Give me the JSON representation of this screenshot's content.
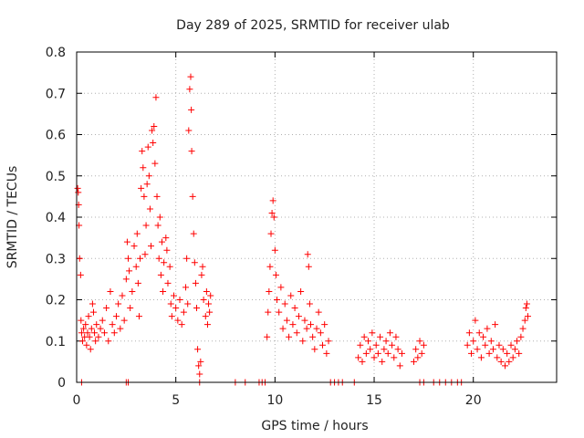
{
  "colors": {
    "points": "#ff0000",
    "axis": "#000000",
    "grid": "#b0b0b0"
  },
  "chart_data": {
    "type": "scatter",
    "title": "Day 289 of 2025, SRMTID for receiver ulab",
    "xlabel": "GPS time / hours",
    "ylabel": "SRMTID / TECUs",
    "xlim": [
      0,
      24.2
    ],
    "ylim": [
      0,
      0.8
    ],
    "xticks": [
      0,
      5,
      10,
      15,
      20
    ],
    "xtick_labels": [
      "0",
      "5",
      "10",
      "15",
      "20"
    ],
    "yticks": [
      0,
      0.1,
      0.2,
      0.3,
      0.4,
      0.5,
      0.6,
      0.7,
      0.8
    ],
    "ytick_labels": [
      "0",
      "0.1",
      "0.2",
      "0.3",
      "0.4",
      "0.5",
      "0.6",
      "0.7",
      "0.8"
    ],
    "grid": true,
    "marker": "+",
    "series": [
      {
        "name": "SRMTID",
        "points": [
          [
            0.05,
            0.47
          ],
          [
            0.08,
            0.46
          ],
          [
            0.1,
            0.43
          ],
          [
            0.12,
            0.38
          ],
          [
            0.15,
            0.3
          ],
          [
            0.2,
            0.26
          ],
          [
            0.22,
            0.15
          ],
          [
            0.25,
            0.12
          ],
          [
            0.3,
            0.1
          ],
          [
            0.35,
            0.13
          ],
          [
            0.4,
            0.11
          ],
          [
            0.45,
            0.14
          ],
          [
            0.5,
            0.09
          ],
          [
            0.55,
            0.12
          ],
          [
            0.6,
            0.16
          ],
          [
            0.65,
            0.11
          ],
          [
            0.7,
            0.08
          ],
          [
            0.75,
            0.13
          ],
          [
            0.8,
            0.19
          ],
          [
            0.85,
            0.17
          ],
          [
            0.9,
            0.12
          ],
          [
            0.95,
            0.1
          ],
          [
            1.0,
            0.14
          ],
          [
            1.1,
            0.11
          ],
          [
            1.2,
            0.13
          ],
          [
            1.3,
            0.15
          ],
          [
            1.4,
            0.12
          ],
          [
            1.5,
            0.18
          ],
          [
            1.6,
            0.1
          ],
          [
            1.7,
            0.22
          ],
          [
            1.8,
            0.14
          ],
          [
            1.9,
            0.12
          ],
          [
            2.0,
            0.16
          ],
          [
            2.1,
            0.19
          ],
          [
            2.2,
            0.13
          ],
          [
            2.3,
            0.21
          ],
          [
            2.4,
            0.15
          ],
          [
            2.5,
            0.25
          ],
          [
            2.55,
            0.34
          ],
          [
            2.6,
            0.3
          ],
          [
            2.65,
            0.27
          ],
          [
            2.7,
            0.18
          ],
          [
            2.8,
            0.22
          ],
          [
            2.9,
            0.33
          ],
          [
            3.0,
            0.28
          ],
          [
            3.05,
            0.36
          ],
          [
            3.1,
            0.24
          ],
          [
            3.15,
            0.16
          ],
          [
            3.2,
            0.3
          ],
          [
            3.25,
            0.47
          ],
          [
            3.3,
            0.56
          ],
          [
            3.35,
            0.52
          ],
          [
            3.4,
            0.45
          ],
          [
            3.45,
            0.31
          ],
          [
            3.5,
            0.38
          ],
          [
            3.55,
            0.48
          ],
          [
            3.6,
            0.57
          ],
          [
            3.65,
            0.5
          ],
          [
            3.7,
            0.42
          ],
          [
            3.75,
            0.33
          ],
          [
            3.8,
            0.61
          ],
          [
            3.85,
            0.58
          ],
          [
            3.9,
            0.62
          ],
          [
            3.95,
            0.53
          ],
          [
            4.0,
            0.69
          ],
          [
            4.05,
            0.45
          ],
          [
            4.1,
            0.38
          ],
          [
            4.15,
            0.3
          ],
          [
            4.2,
            0.4
          ],
          [
            4.25,
            0.26
          ],
          [
            4.3,
            0.34
          ],
          [
            4.35,
            0.22
          ],
          [
            4.4,
            0.29
          ],
          [
            4.5,
            0.35
          ],
          [
            4.55,
            0.32
          ],
          [
            4.6,
            0.24
          ],
          [
            4.7,
            0.28
          ],
          [
            4.75,
            0.19
          ],
          [
            4.8,
            0.16
          ],
          [
            4.9,
            0.21
          ],
          [
            5.0,
            0.18
          ],
          [
            5.1,
            0.15
          ],
          [
            5.2,
            0.2
          ],
          [
            5.3,
            0.14
          ],
          [
            5.4,
            0.17
          ],
          [
            5.5,
            0.23
          ],
          [
            5.55,
            0.3
          ],
          [
            5.6,
            0.19
          ],
          [
            5.65,
            0.61
          ],
          [
            5.7,
            0.71
          ],
          [
            5.75,
            0.74
          ],
          [
            5.78,
            0.66
          ],
          [
            5.8,
            0.56
          ],
          [
            5.85,
            0.45
          ],
          [
            5.9,
            0.36
          ],
          [
            5.95,
            0.29
          ],
          [
            6.0,
            0.24
          ],
          [
            6.05,
            0.18
          ],
          [
            6.1,
            0.08
          ],
          [
            6.15,
            0.04
          ],
          [
            6.2,
            0.02
          ],
          [
            6.25,
            0.05
          ],
          [
            6.3,
            0.26
          ],
          [
            6.35,
            0.28
          ],
          [
            6.4,
            0.2
          ],
          [
            6.5,
            0.16
          ],
          [
            6.55,
            0.22
          ],
          [
            6.6,
            0.14
          ],
          [
            6.65,
            0.19
          ],
          [
            6.7,
            0.17
          ],
          [
            6.75,
            0.21
          ],
          [
            9.6,
            0.11
          ],
          [
            9.65,
            0.17
          ],
          [
            9.7,
            0.22
          ],
          [
            9.75,
            0.28
          ],
          [
            9.8,
            0.36
          ],
          [
            9.85,
            0.41
          ],
          [
            9.9,
            0.44
          ],
          [
            9.95,
            0.4
          ],
          [
            10.0,
            0.32
          ],
          [
            10.05,
            0.26
          ],
          [
            10.1,
            0.2
          ],
          [
            10.2,
            0.17
          ],
          [
            10.3,
            0.23
          ],
          [
            10.4,
            0.13
          ],
          [
            10.5,
            0.19
          ],
          [
            10.6,
            0.15
          ],
          [
            10.7,
            0.11
          ],
          [
            10.8,
            0.21
          ],
          [
            10.9,
            0.14
          ],
          [
            11.0,
            0.18
          ],
          [
            11.1,
            0.12
          ],
          [
            11.2,
            0.16
          ],
          [
            11.3,
            0.22
          ],
          [
            11.4,
            0.1
          ],
          [
            11.5,
            0.15
          ],
          [
            11.6,
            0.13
          ],
          [
            11.65,
            0.31
          ],
          [
            11.7,
            0.28
          ],
          [
            11.75,
            0.19
          ],
          [
            11.8,
            0.14
          ],
          [
            11.9,
            0.11
          ],
          [
            12.0,
            0.08
          ],
          [
            12.1,
            0.13
          ],
          [
            12.2,
            0.17
          ],
          [
            12.3,
            0.12
          ],
          [
            12.4,
            0.09
          ],
          [
            12.5,
            0.14
          ],
          [
            12.6,
            0.07
          ],
          [
            12.7,
            0.1
          ],
          [
            14.2,
            0.06
          ],
          [
            14.3,
            0.09
          ],
          [
            14.4,
            0.05
          ],
          [
            14.5,
            0.11
          ],
          [
            14.6,
            0.07
          ],
          [
            14.7,
            0.1
          ],
          [
            14.8,
            0.08
          ],
          [
            14.9,
            0.12
          ],
          [
            15.0,
            0.06
          ],
          [
            15.1,
            0.09
          ],
          [
            15.2,
            0.07
          ],
          [
            15.3,
            0.11
          ],
          [
            15.4,
            0.05
          ],
          [
            15.5,
            0.08
          ],
          [
            15.6,
            0.1
          ],
          [
            15.7,
            0.07
          ],
          [
            15.8,
            0.12
          ],
          [
            15.9,
            0.09
          ],
          [
            16.0,
            0.06
          ],
          [
            16.1,
            0.11
          ],
          [
            16.2,
            0.08
          ],
          [
            16.3,
            0.04
          ],
          [
            16.4,
            0.07
          ],
          [
            17.0,
            0.05
          ],
          [
            17.1,
            0.08
          ],
          [
            17.2,
            0.06
          ],
          [
            17.3,
            0.1
          ],
          [
            17.4,
            0.07
          ],
          [
            17.5,
            0.09
          ],
          [
            19.7,
            0.09
          ],
          [
            19.8,
            0.12
          ],
          [
            19.9,
            0.07
          ],
          [
            20.0,
            0.1
          ],
          [
            20.1,
            0.15
          ],
          [
            20.2,
            0.08
          ],
          [
            20.3,
            0.12
          ],
          [
            20.4,
            0.06
          ],
          [
            20.5,
            0.11
          ],
          [
            20.6,
            0.09
          ],
          [
            20.7,
            0.13
          ],
          [
            20.8,
            0.07
          ],
          [
            20.9,
            0.1
          ],
          [
            21.0,
            0.08
          ],
          [
            21.1,
            0.14
          ],
          [
            21.2,
            0.06
          ],
          [
            21.3,
            0.09
          ],
          [
            21.4,
            0.05
          ],
          [
            21.5,
            0.08
          ],
          [
            21.6,
            0.04
          ],
          [
            21.7,
            0.07
          ],
          [
            21.8,
            0.05
          ],
          [
            21.9,
            0.09
          ],
          [
            22.0,
            0.06
          ],
          [
            22.1,
            0.08
          ],
          [
            22.2,
            0.1
          ],
          [
            22.3,
            0.07
          ],
          [
            22.4,
            0.11
          ],
          [
            22.5,
            0.13
          ],
          [
            22.6,
            0.15
          ],
          [
            22.65,
            0.18
          ],
          [
            22.7,
            0.19
          ],
          [
            22.75,
            0.16
          ],
          [
            0.25,
            0.0
          ],
          [
            2.5,
            0.0
          ],
          [
            2.6,
            0.0
          ],
          [
            6.2,
            0.0
          ],
          [
            8.0,
            0.0
          ],
          [
            8.5,
            0.0
          ],
          [
            9.2,
            0.0
          ],
          [
            9.35,
            0.0
          ],
          [
            9.5,
            0.0
          ],
          [
            12.8,
            0.0
          ],
          [
            13.0,
            0.0
          ],
          [
            13.2,
            0.0
          ],
          [
            13.4,
            0.0
          ],
          [
            14.0,
            0.0
          ],
          [
            17.3,
            0.0
          ],
          [
            17.5,
            0.0
          ],
          [
            18.0,
            0.0
          ],
          [
            18.3,
            0.0
          ],
          [
            18.6,
            0.0
          ],
          [
            18.9,
            0.0
          ],
          [
            19.2,
            0.0
          ],
          [
            19.4,
            0.0
          ]
        ]
      }
    ]
  }
}
